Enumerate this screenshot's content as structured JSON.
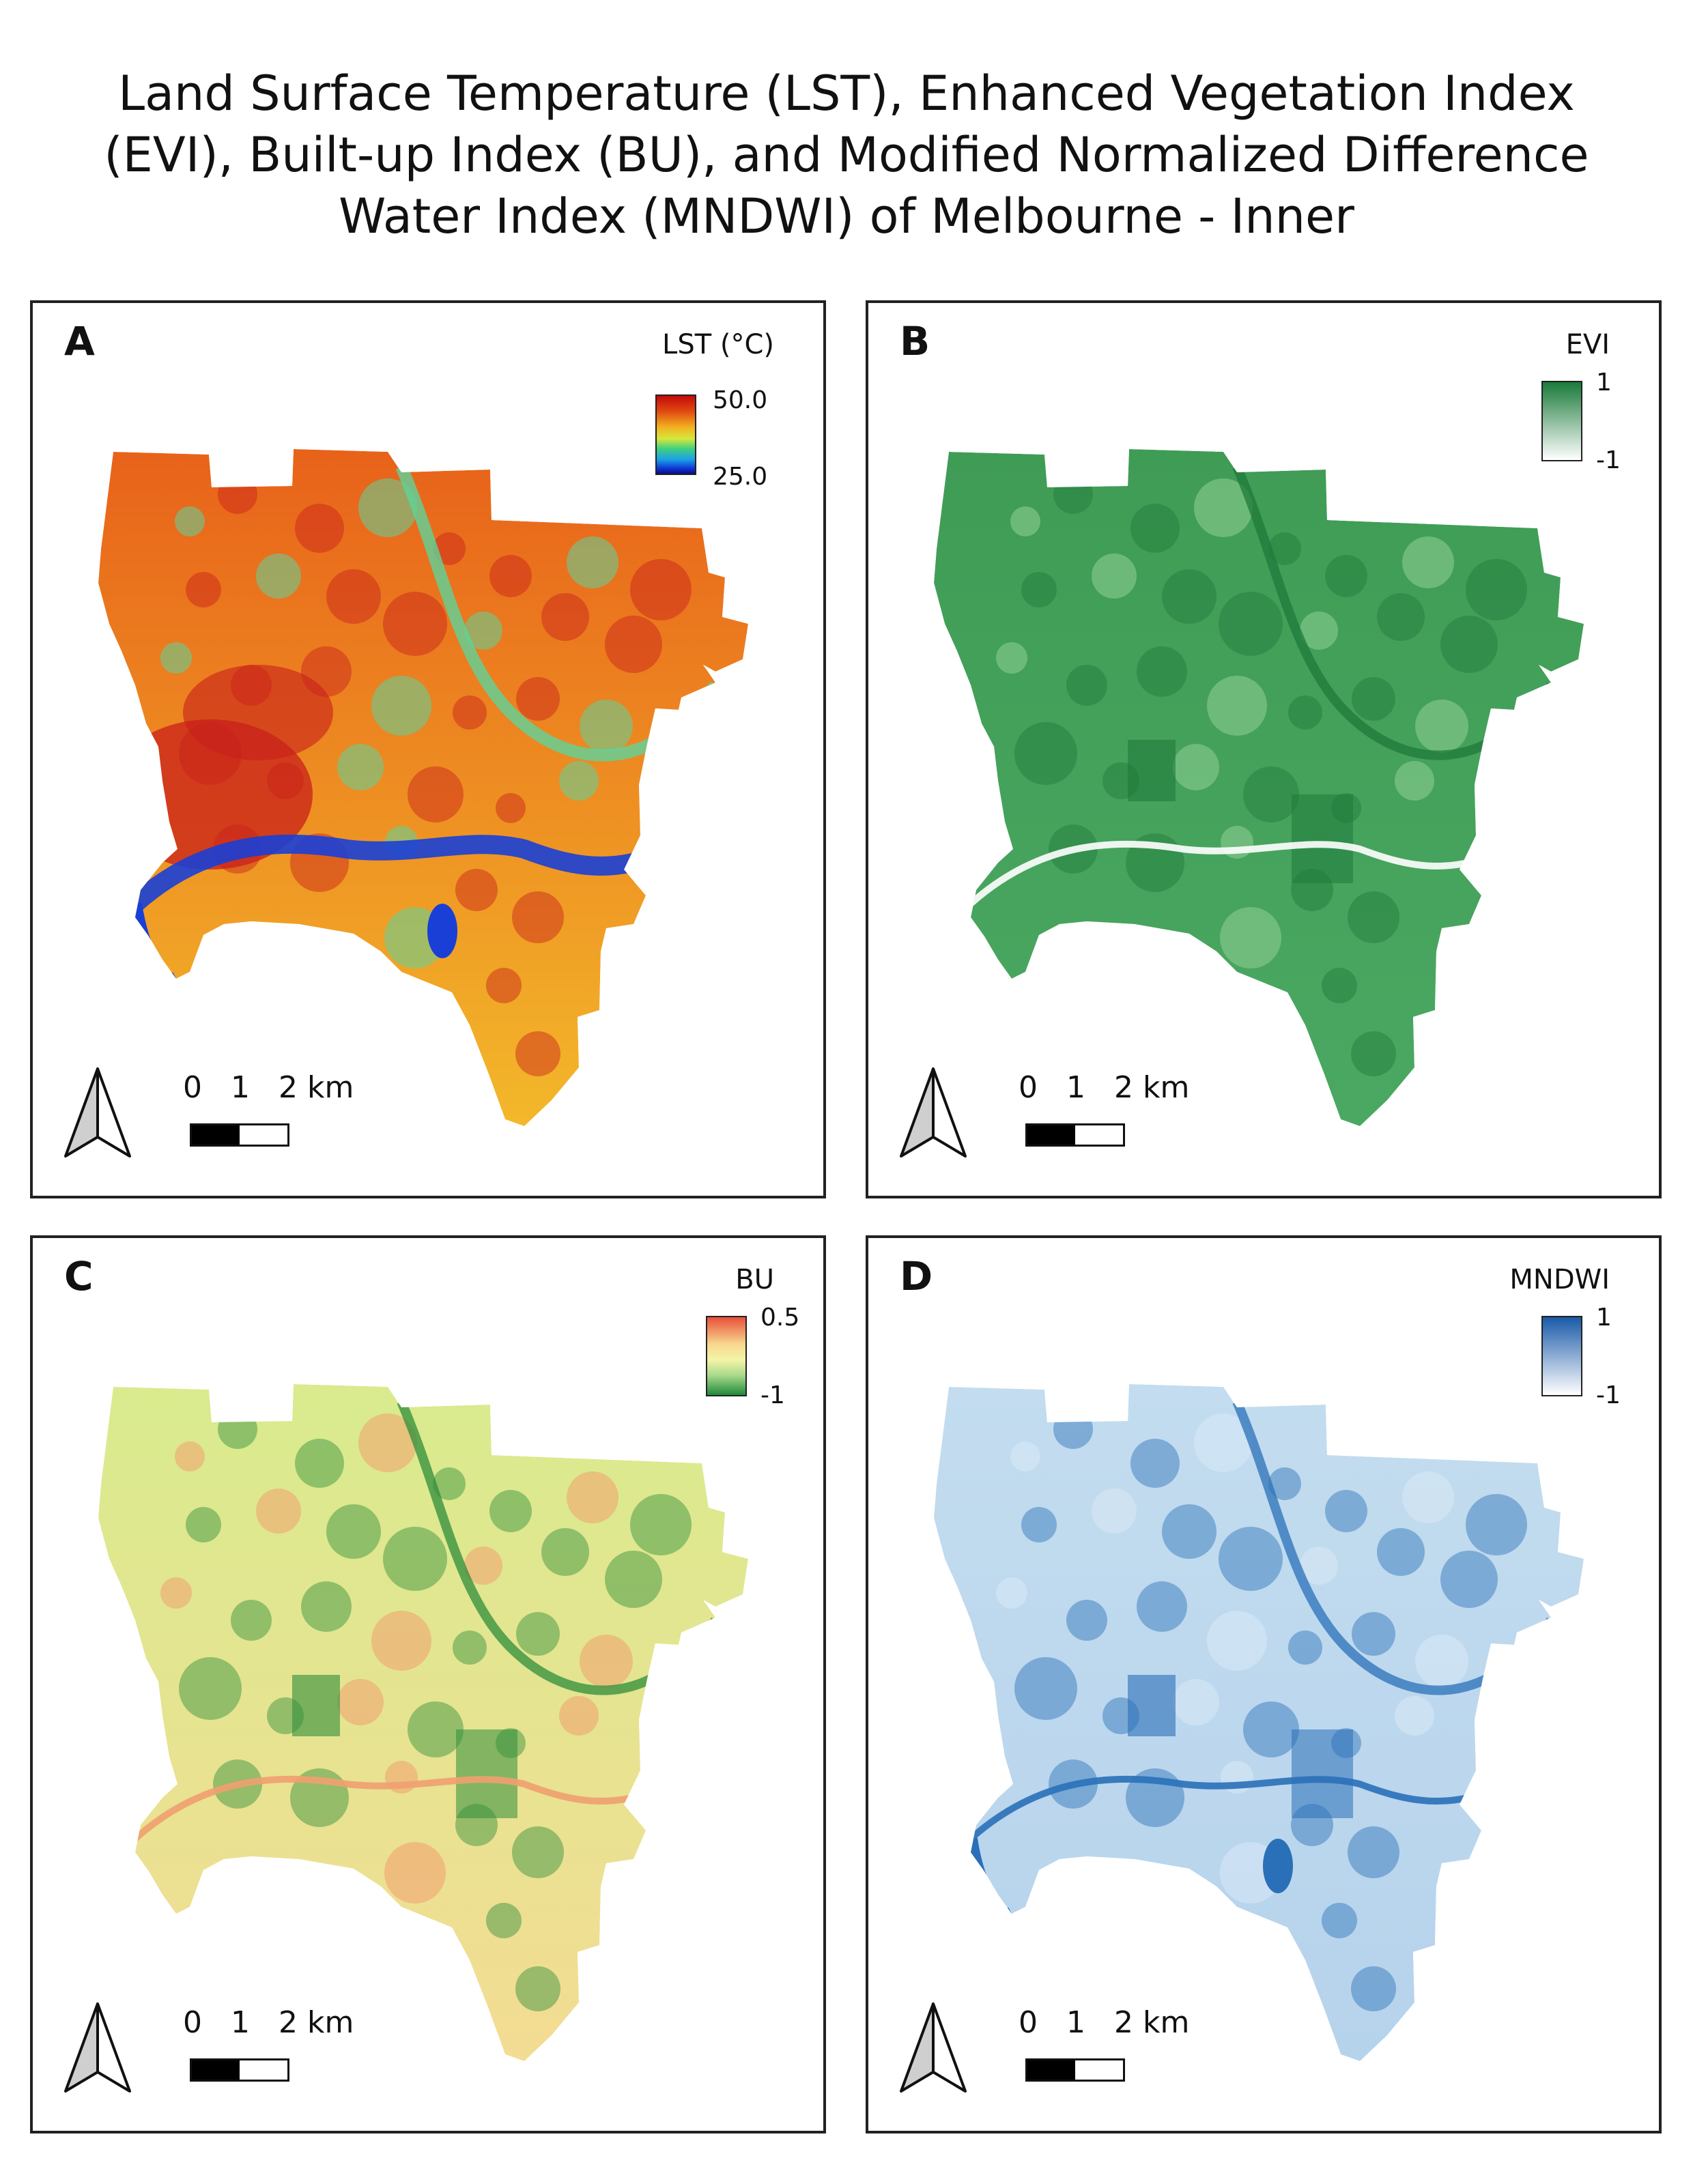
{
  "title_lines": [
    "Land Surface Temperature (LST), Enhanced Vegetation Index",
    "(EVI), Built-up Index (BU), and Modified Normalized Difference",
    "Water Index (MNDWI) of Melbourne - Inner"
  ],
  "panels": [
    {
      "letter": "A",
      "legend_title": "LST (°C)",
      "legend_max": "50.0",
      "legend_min": "25.0",
      "scale_labels": [
        "0",
        "1",
        "2 km"
      ],
      "colors": {
        "fill_top": "#e8621a",
        "fill_bottom": "#f3b82a",
        "hot": "#c8201a",
        "water": "#1a3fd6",
        "cool": "#5fd39a"
      }
    },
    {
      "letter": "B",
      "legend_title": "EVI",
      "legend_max": "1",
      "legend_min": "-1",
      "scale_labels": [
        "0",
        "1",
        "2 km"
      ],
      "colors": {
        "fill_top": "#3f9c55",
        "fill_bottom": "#4aa862",
        "dark": "#1f7a3a",
        "light": "#8fcf96"
      }
    },
    {
      "letter": "C",
      "legend_title": "BU",
      "legend_max": "0.5",
      "legend_min": "-1",
      "scale_labels": [
        "0",
        "1",
        "2 km"
      ],
      "colors": {
        "fill_top": "#d9eb8e",
        "fill_bottom": "#f3dc93",
        "dark": "#2f8e3a",
        "warm": "#f0a070"
      }
    },
    {
      "letter": "D",
      "legend_title": "MNDWI",
      "legend_max": "1",
      "legend_min": "-1",
      "scale_labels": [
        "0",
        "1",
        "2 km"
      ],
      "colors": {
        "fill_top": "#c3dcef",
        "fill_bottom": "#b6d3ec",
        "dark": "#2a70b8",
        "light": "#d9e9f5"
      }
    }
  ]
}
